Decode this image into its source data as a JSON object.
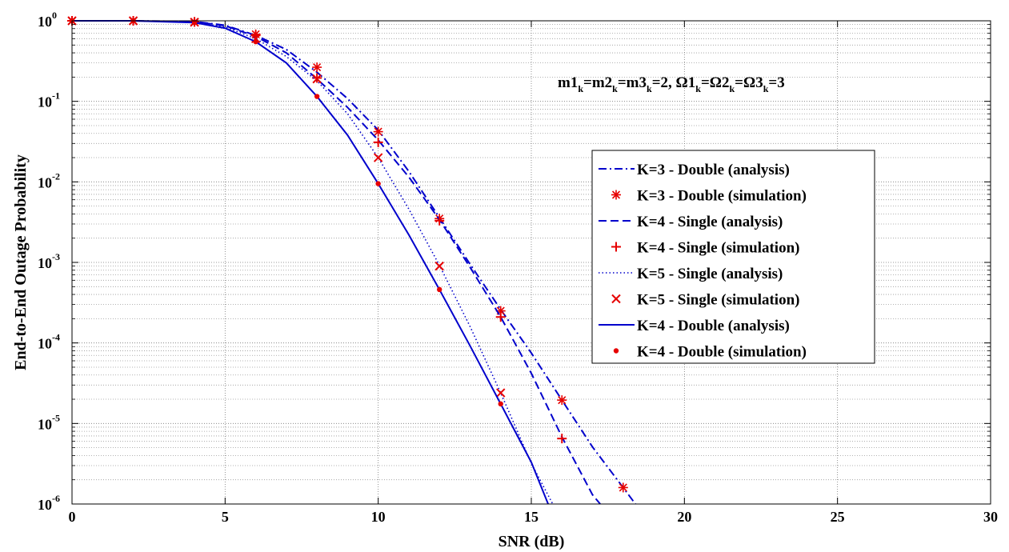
{
  "chart_data": {
    "type": "line",
    "title": "",
    "xlabel": "SNR (dB)",
    "ylabel": "End-to-End Outage Probability",
    "xlim": [
      0,
      30
    ],
    "ylim": [
      1e-06,
      1
    ],
    "yscale": "log",
    "grid": true,
    "legend_position": "right-center",
    "x_ticks": [
      "0",
      "5",
      "10",
      "15",
      "20",
      "25",
      "30"
    ],
    "x_tick_values": [
      0,
      5,
      10,
      15,
      20,
      25,
      30
    ],
    "y_ticks": [
      {
        "base": "10",
        "exp": "0"
      },
      {
        "base": "10",
        "exp": "-1"
      },
      {
        "base": "10",
        "exp": "-2"
      },
      {
        "base": "10",
        "exp": "-3"
      },
      {
        "base": "10",
        "exp": "-4"
      },
      {
        "base": "10",
        "exp": "-5"
      },
      {
        "base": "10",
        "exp": "-6"
      }
    ],
    "y_tick_values": [
      1,
      0.1,
      0.01,
      0.001,
      0.0001,
      1e-05,
      1e-06
    ],
    "annotation": {
      "parts": [
        {
          "t": "m1"
        },
        {
          "t": "k",
          "sub": true
        },
        {
          "t": "=m2"
        },
        {
          "t": "k",
          "sub": true
        },
        {
          "t": "=m3"
        },
        {
          "t": "k",
          "sub": true
        },
        {
          "t": "=2, Ω1"
        },
        {
          "t": "k",
          "sub": true
        },
        {
          "t": "=Ω2"
        },
        {
          "t": "k",
          "sub": true
        },
        {
          "t": "=Ω3"
        },
        {
          "t": "k",
          "sub": true
        },
        {
          "t": "=3"
        }
      ]
    },
    "series": [
      {
        "name": "K=3 - Double (analysis)",
        "kind": "line",
        "style": "dashdot",
        "color": "#0000cc",
        "x": [
          0,
          2,
          4,
          5,
          6,
          7,
          8,
          9,
          10,
          11,
          12,
          13,
          14,
          15,
          16,
          17,
          18,
          18.4
        ],
        "y": [
          1,
          1,
          0.98,
          0.88,
          0.66,
          0.44,
          0.23,
          0.108,
          0.044,
          0.0135,
          0.0036,
          0.00095,
          0.00026,
          7.5e-05,
          1.95e-05,
          5.1e-06,
          1.6e-06,
          1e-06
        ]
      },
      {
        "name": "K=3 - Double (simulation)",
        "kind": "marker",
        "marker": "asterisk",
        "color": "#e60000",
        "x": [
          0,
          2,
          4,
          6,
          8,
          10,
          12,
          14,
          16,
          18
        ],
        "y": [
          1,
          1,
          0.97,
          0.68,
          0.265,
          0.042,
          0.0035,
          0.00025,
          1.95e-05,
          1.6e-06
        ]
      },
      {
        "name": "K=4 - Single (analysis)",
        "kind": "line",
        "style": "dashed",
        "color": "#0000cc",
        "x": [
          0,
          2,
          4,
          5,
          6,
          7,
          8,
          9,
          10,
          11,
          12,
          13,
          14,
          15,
          16,
          17,
          17.25
        ],
        "y": [
          1,
          1,
          0.97,
          0.87,
          0.64,
          0.4,
          0.19,
          0.084,
          0.033,
          0.0115,
          0.0034,
          0.00087,
          0.00021,
          4.2e-05,
          6.8e-06,
          1.3e-06,
          1e-06
        ]
      },
      {
        "name": "K=4 - Single (simulation)",
        "kind": "marker",
        "marker": "plus",
        "color": "#e60000",
        "x": [
          0,
          2,
          4,
          6,
          8,
          10,
          12,
          14,
          16
        ],
        "y": [
          1,
          1,
          0.97,
          0.66,
          0.195,
          0.031,
          0.0033,
          0.00021,
          6.5e-06
        ]
      },
      {
        "name": "K=5 - Single (analysis)",
        "kind": "line",
        "style": "dotted",
        "color": "#0000cc",
        "x": [
          0,
          2,
          4,
          5,
          6,
          7,
          8,
          9,
          10,
          11,
          12,
          13,
          14,
          15,
          15.7
        ],
        "y": [
          1,
          1,
          0.96,
          0.84,
          0.6,
          0.36,
          0.18,
          0.07,
          0.02,
          0.0046,
          0.00092,
          0.00016,
          2.4e-05,
          3.2e-06,
          1e-06
        ]
      },
      {
        "name": "K=5 - Single (simulation)",
        "kind": "marker",
        "marker": "x",
        "color": "#e60000",
        "x": [
          0,
          2,
          4,
          6,
          8,
          10,
          12,
          14
        ],
        "y": [
          1,
          1,
          0.96,
          0.6,
          0.19,
          0.02,
          0.0009,
          2.4e-05
        ]
      },
      {
        "name": "K=4 - Double (analysis)",
        "kind": "line",
        "style": "solid",
        "color": "#0000cc",
        "x": [
          0,
          2,
          4,
          5,
          6,
          7,
          8,
          9,
          10,
          11,
          12,
          13,
          14,
          15,
          15.55
        ],
        "y": [
          1,
          1,
          0.95,
          0.81,
          0.55,
          0.3,
          0.115,
          0.038,
          0.0095,
          0.0022,
          0.00046,
          9.2e-05,
          1.75e-05,
          3.3e-06,
          1e-06
        ]
      },
      {
        "name": "K=4 - Double (simulation)",
        "kind": "marker",
        "marker": "dot",
        "color": "#e60000",
        "x": [
          0,
          2,
          4,
          6,
          8,
          10,
          12,
          14
        ],
        "y": [
          1,
          1,
          0.95,
          0.55,
          0.115,
          0.0095,
          0.00046,
          1.75e-05
        ]
      }
    ]
  }
}
